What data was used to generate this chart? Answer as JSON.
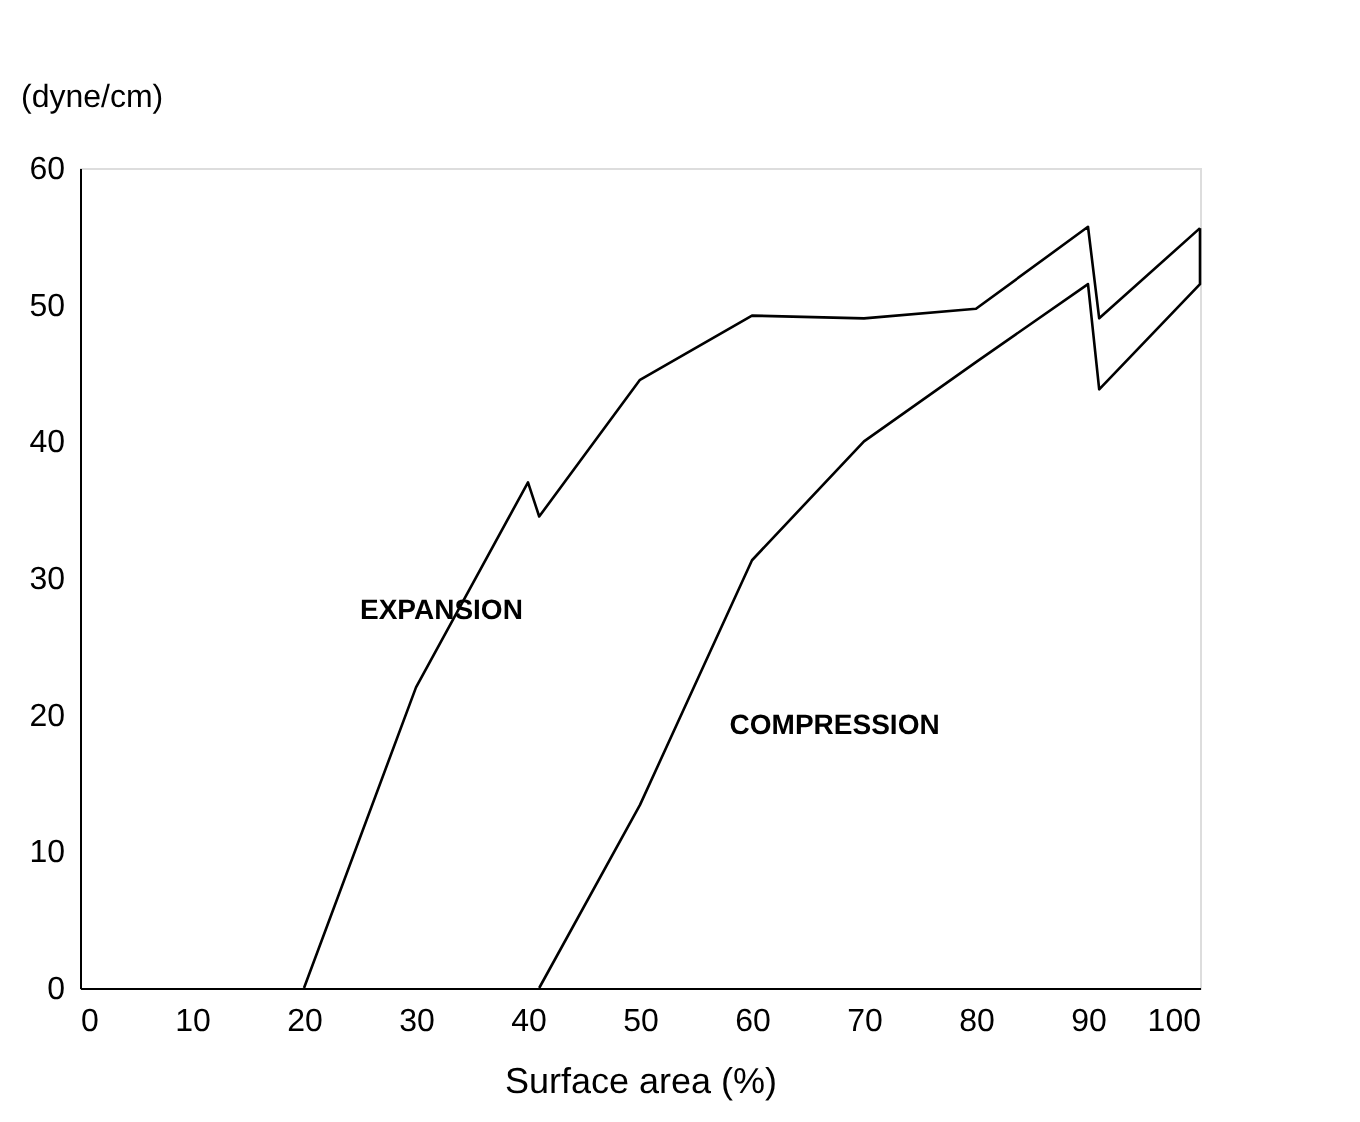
{
  "chart_data": {
    "type": "line",
    "xlabel": "Surface area (%)",
    "ylabel": "(dyne/cm)",
    "series": [
      {
        "color": "#000000",
        "x": [
          20,
          30,
          40,
          41,
          50,
          60,
          70,
          80,
          90,
          91,
          100
        ],
        "values": [
          0,
          22,
          37,
          34.5,
          44.5,
          49.2,
          49,
          49.7,
          55.7,
          49,
          55.6
        ]
      },
      {
        "color": "#000000",
        "x": [
          100,
          100,
          91,
          90,
          80,
          70,
          60,
          50,
          41
        ],
        "values": [
          55.6,
          51.5,
          43.8,
          51.5,
          45.8,
          40,
          31.3,
          13.4,
          0
        ]
      }
    ],
    "annotations": [
      "EXPANSION",
      "COMPRESSION"
    ],
    "xlim": [
      0,
      100
    ],
    "ylim": [
      0,
      60
    ],
    "xticks": [
      0,
      10,
      20,
      30,
      40,
      50,
      60,
      70,
      80,
      90,
      100
    ],
    "yticks": [
      0,
      10,
      20,
      30,
      40,
      50,
      60
    ],
    "grid": false,
    "marker": "none",
    "line_style": "solid"
  }
}
